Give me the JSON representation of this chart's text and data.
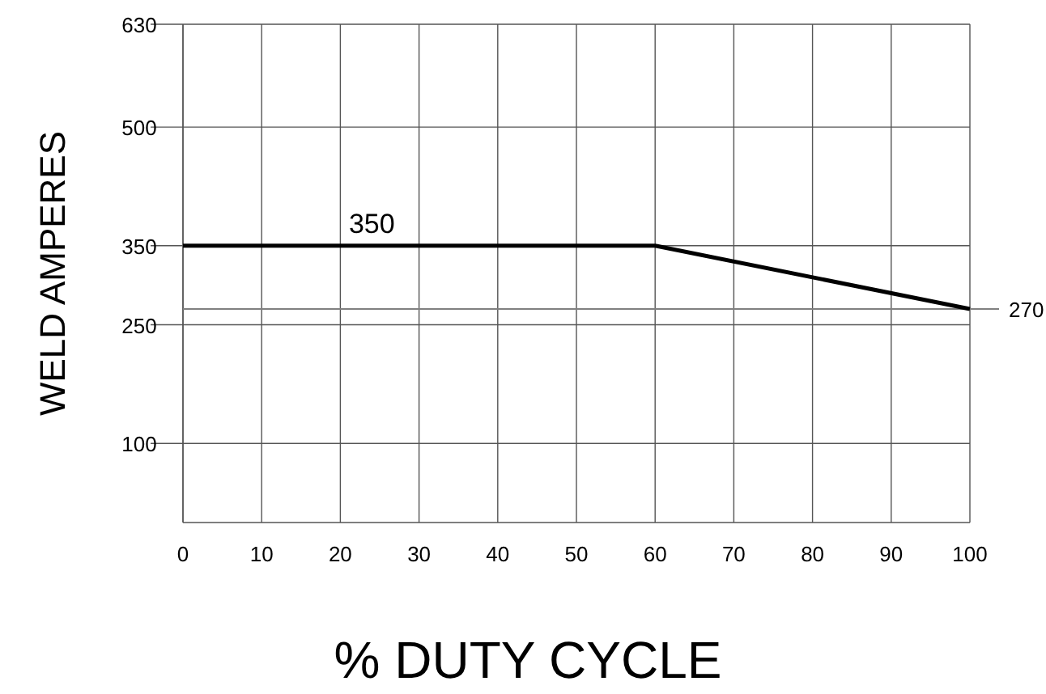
{
  "chart_data": {
    "type": "line",
    "xlabel": "% DUTY CYCLE",
    "ylabel": "WELD AMPERES",
    "x": [
      0,
      60,
      100
    ],
    "series": [
      {
        "color": "#000000",
        "values": [
          350,
          350,
          270
        ]
      }
    ],
    "xlim": [
      0,
      100
    ],
    "xticks": [
      0,
      10,
      20,
      30,
      40,
      50,
      60,
      70,
      80,
      90,
      100
    ],
    "ylim": [
      0,
      630
    ],
    "yticks": [
      100,
      250,
      350,
      500,
      630
    ],
    "grid": true,
    "marker": "none",
    "line_style": "solid",
    "ref_lines": [
      {
        "axis": "y",
        "value": 270,
        "label": "270",
        "color": "#808080"
      }
    ],
    "annotations": [
      {
        "text": "350",
        "x": 24,
        "y": 350
      }
    ]
  }
}
